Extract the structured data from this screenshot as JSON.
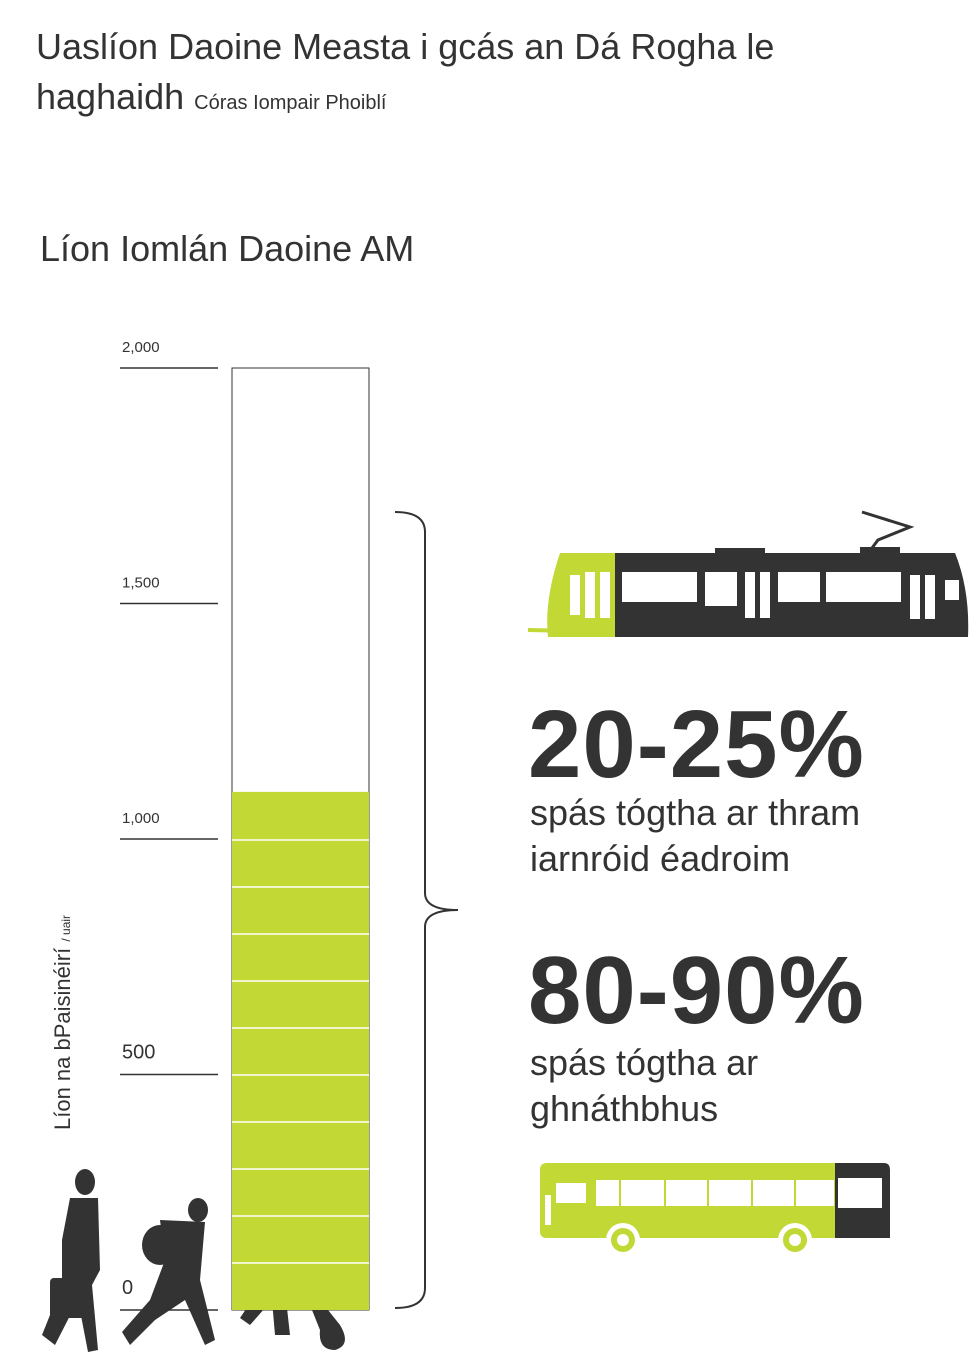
{
  "chart_data": {
    "type": "bar",
    "title": "Uaslíon Daoine Measta i gcás an Dá Rogha le haghaidh",
    "title_note": "Córas Iompair Phoiblí",
    "subtitle": "Líon Iomlán Daoine AM",
    "y_label": "Líon na bPaisinéirí",
    "y_label_unit": "/ uair",
    "categories": [
      null
    ],
    "values": [
      1100
    ],
    "color": "#c2d835",
    "ylim": [
      0,
      2000
    ],
    "yticks": [
      0,
      500,
      {
        "value": 1000,
        "label": "1,000"
      },
      {
        "value": 1500,
        "label": "1,500"
      },
      {
        "value": 2000,
        "label": "2,000"
      }
    ],
    "annotations": [
      {
        "value_text": "20-25%",
        "text": "spás tógtha ar thram iarnróid éadroim"
      },
      {
        "value_text": "80-90%",
        "text": "spás tógtha ar ghnáthbhus"
      }
    ]
  }
}
